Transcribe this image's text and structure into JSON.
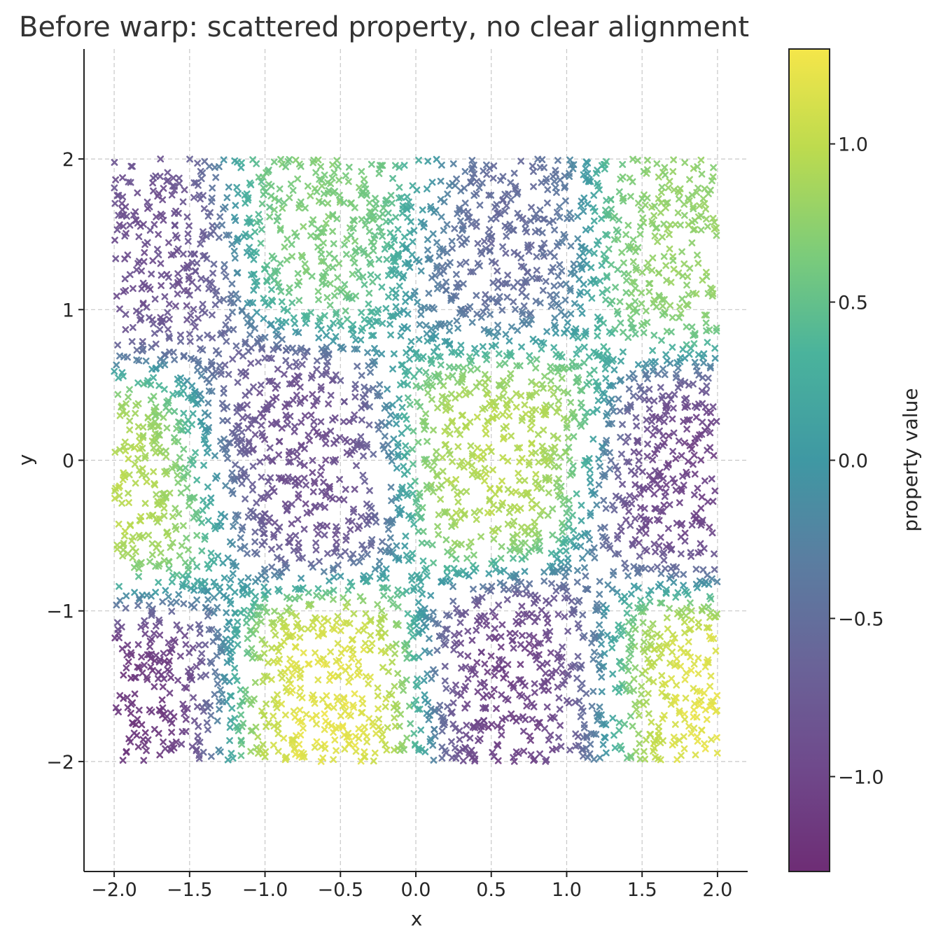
{
  "chart_data": {
    "type": "scatter",
    "title": "Before warp: scattered property, no clear alignment",
    "xlabel": "x",
    "ylabel": "y",
    "xlim": [
      -2.2,
      2.2
    ],
    "ylim": [
      -2.73,
      2.73
    ],
    "x_ticks": [
      -2.0,
      -1.5,
      -1.0,
      -0.5,
      0.0,
      0.5,
      1.0,
      1.5,
      2.0
    ],
    "x_tick_labels": [
      "−2.0",
      "−1.5",
      "−1.0",
      "−0.5",
      "0.0",
      "0.5",
      "1.0",
      "1.5",
      "2.0"
    ],
    "y_ticks": [
      -2,
      -1,
      0,
      1,
      2
    ],
    "y_tick_labels": [
      "−2",
      "−1",
      "0",
      "1",
      "2"
    ],
    "grid": true,
    "marker": "x",
    "colormap": "viridis",
    "colorbar": {
      "label": "property value",
      "range": [
        -1.3,
        1.3
      ],
      "ticks": [
        -1.0,
        -0.5,
        0.0,
        0.5,
        1.0
      ],
      "tick_labels": [
        "−1.0",
        "−0.5",
        "0.0",
        "0.5",
        "1.0"
      ]
    },
    "series": [
      {
        "point_count": 5000,
        "x_range": [
          -2,
          2
        ],
        "y_range": [
          -2,
          2
        ],
        "property_features": [
          {
            "x": -0.65,
            "y": -1.65,
            "value": 1.25
          },
          {
            "x": 1.8,
            "y": -1.6,
            "value": 1.25
          },
          {
            "x": -1.9,
            "y": -0.2,
            "value": 1.0
          },
          {
            "x": 0.55,
            "y": 0.1,
            "value": 1.0
          },
          {
            "x": -0.5,
            "y": 1.6,
            "value": 0.7
          },
          {
            "x": 1.8,
            "y": 1.4,
            "value": 0.8
          },
          {
            "x": -1.85,
            "y": -1.6,
            "value": -1.2
          },
          {
            "x": 0.75,
            "y": -1.6,
            "value": -1.1
          },
          {
            "x": 1.85,
            "y": -0.1,
            "value": -1.05
          },
          {
            "x": -0.8,
            "y": 0.0,
            "value": -0.95
          },
          {
            "x": -1.9,
            "y": 1.4,
            "value": -0.9
          },
          {
            "x": 0.5,
            "y": 1.4,
            "value": -0.6
          }
        ]
      }
    ]
  }
}
